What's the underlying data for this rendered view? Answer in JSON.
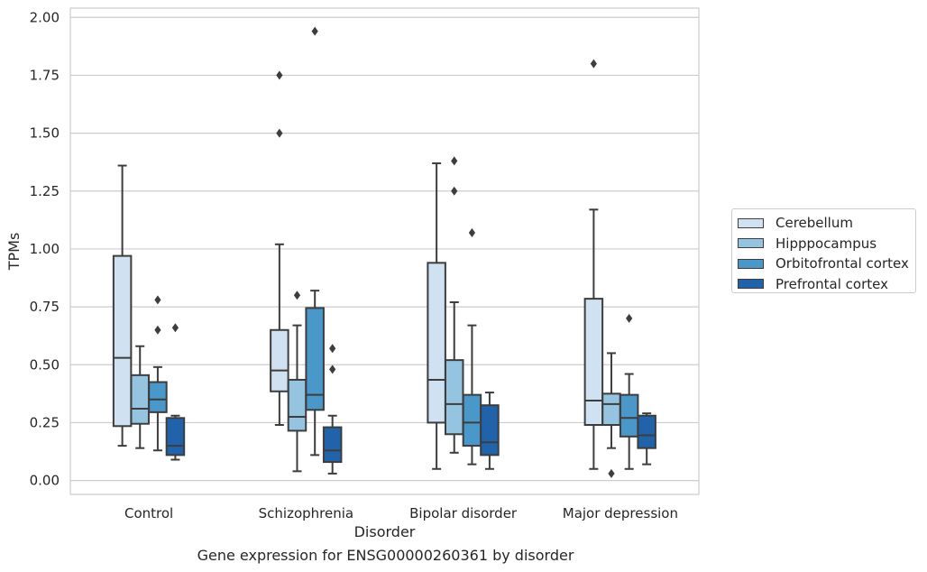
{
  "caption": "Gene expression for ENSG00000260361 by disorder",
  "chart_data": {
    "type": "boxplot",
    "xlabel": "Disorder",
    "ylabel": "TPMs",
    "ylim": [
      -0.06,
      2.04
    ],
    "yticks": [
      "0.00",
      "0.25",
      "0.50",
      "0.75",
      "1.00",
      "1.25",
      "1.50",
      "1.75",
      "2.00"
    ],
    "categories": [
      "Control",
      "Schizophrenia",
      "Bipolar disorder",
      "Major depression"
    ],
    "grid": "horizontal",
    "legend_position": "right",
    "series": [
      {
        "name": "Cerebellum",
        "color": "#d0e1f2",
        "boxes": [
          {
            "whislo": 0.15,
            "q1": 0.235,
            "med": 0.53,
            "q3": 0.97,
            "whishi": 1.36,
            "fliers": []
          },
          {
            "whislo": 0.24,
            "q1": 0.385,
            "med": 0.475,
            "q3": 0.65,
            "whishi": 1.02,
            "fliers": [
              1.5,
              1.75
            ]
          },
          {
            "whislo": 0.05,
            "q1": 0.25,
            "med": 0.435,
            "q3": 0.94,
            "whishi": 1.37,
            "fliers": []
          },
          {
            "whislo": 0.05,
            "q1": 0.24,
            "med": 0.345,
            "q3": 0.785,
            "whishi": 1.17,
            "fliers": [
              1.8
            ]
          }
        ]
      },
      {
        "name": "Hipppocampus",
        "color": "#94c4df",
        "boxes": [
          {
            "whislo": 0.14,
            "q1": 0.245,
            "med": 0.31,
            "q3": 0.455,
            "whishi": 0.58,
            "fliers": []
          },
          {
            "whislo": 0.04,
            "q1": 0.215,
            "med": 0.275,
            "q3": 0.435,
            "whishi": 0.67,
            "fliers": [
              0.8
            ]
          },
          {
            "whislo": 0.12,
            "q1": 0.2,
            "med": 0.33,
            "q3": 0.52,
            "whishi": 0.77,
            "fliers": [
              1.25,
              1.38
            ]
          },
          {
            "whislo": 0.14,
            "q1": 0.24,
            "med": 0.33,
            "q3": 0.375,
            "whishi": 0.55,
            "fliers": [
              0.03
            ]
          }
        ]
      },
      {
        "name": "Orbitofrontal cortex",
        "color": "#4a98c9",
        "boxes": [
          {
            "whislo": 0.13,
            "q1": 0.295,
            "med": 0.35,
            "q3": 0.425,
            "whishi": 0.49,
            "fliers": [
              0.65,
              0.78
            ]
          },
          {
            "whislo": 0.11,
            "q1": 0.305,
            "med": 0.37,
            "q3": 0.745,
            "whishi": 0.82,
            "fliers": [
              1.94
            ]
          },
          {
            "whislo": 0.07,
            "q1": 0.15,
            "med": 0.25,
            "q3": 0.37,
            "whishi": 0.67,
            "fliers": [
              1.07
            ]
          },
          {
            "whislo": 0.05,
            "q1": 0.19,
            "med": 0.27,
            "q3": 0.37,
            "whishi": 0.46,
            "fliers": [
              0.7
            ]
          }
        ]
      },
      {
        "name": "Prefrontal cortex",
        "color": "#2163aa",
        "boxes": [
          {
            "whislo": 0.09,
            "q1": 0.11,
            "med": 0.15,
            "q3": 0.27,
            "whishi": 0.28,
            "fliers": [
              0.66
            ]
          },
          {
            "whislo": 0.03,
            "q1": 0.08,
            "med": 0.13,
            "q3": 0.23,
            "whishi": 0.28,
            "fliers": [
              0.48,
              0.57
            ]
          },
          {
            "whislo": 0.05,
            "q1": 0.11,
            "med": 0.165,
            "q3": 0.325,
            "whishi": 0.38,
            "fliers": []
          },
          {
            "whislo": 0.07,
            "q1": 0.14,
            "med": 0.195,
            "q3": 0.28,
            "whishi": 0.29,
            "fliers": []
          }
        ]
      }
    ]
  }
}
